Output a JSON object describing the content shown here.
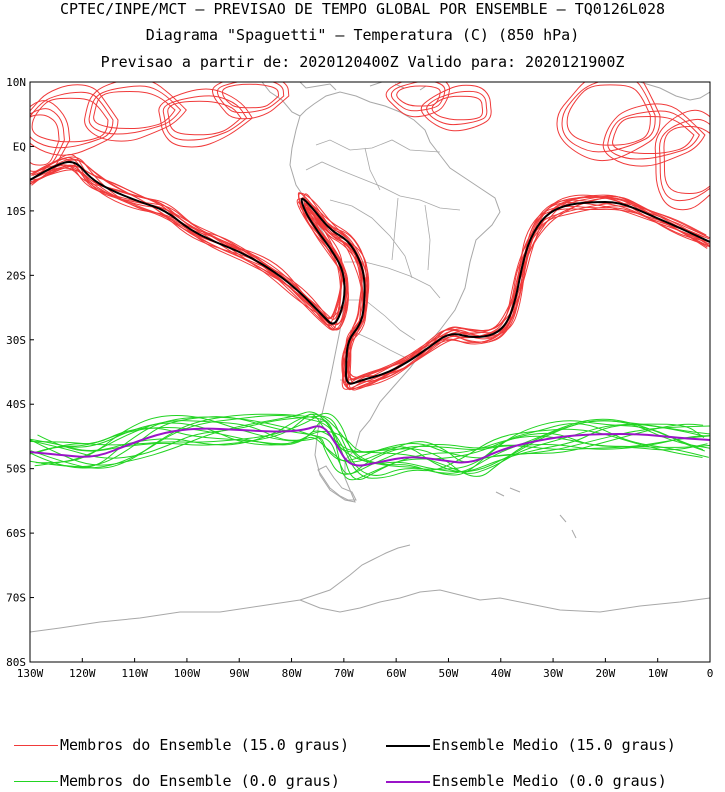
{
  "header": {
    "line1": "CPTEC/INPE/MCT – PREVISAO DE TEMPO GLOBAL POR ENSEMBLE – TQ0126L028",
    "line2": "Diagrama \"Spaguetti\" – Temperatura (C) (850 hPa)",
    "line3": "Previsao a partir de: 2020120400Z  Valido para: 2020121900Z"
  },
  "map": {
    "lat_labels": [
      "10N",
      "EQ",
      "10S",
      "20S",
      "30S",
      "40S",
      "50S",
      "60S",
      "70S",
      "80S"
    ],
    "lon_labels": [
      "130W",
      "120W",
      "110W",
      "100W",
      "90W",
      "80W",
      "70W",
      "60W",
      "50W",
      "40W",
      "30W",
      "20W",
      "10W",
      "0"
    ],
    "extent": {
      "lon_min": -130,
      "lon_max": 0,
      "lat_min": -80,
      "lat_max": 10
    },
    "colors": {
      "member15": "#f03a3a",
      "mean15": "#000000",
      "member0": "#22d422",
      "mean0": "#9a14c8",
      "coast": "#a8a8a8"
    }
  },
  "legend": {
    "member15": "Membros do Ensemble (15.0 graus)",
    "mean15": "Ensemble Medio (15.0 graus)",
    "member0": "Membros do Ensemble (0.0 graus)",
    "mean0": "Ensemble Medio (0.0 graus)"
  }
}
